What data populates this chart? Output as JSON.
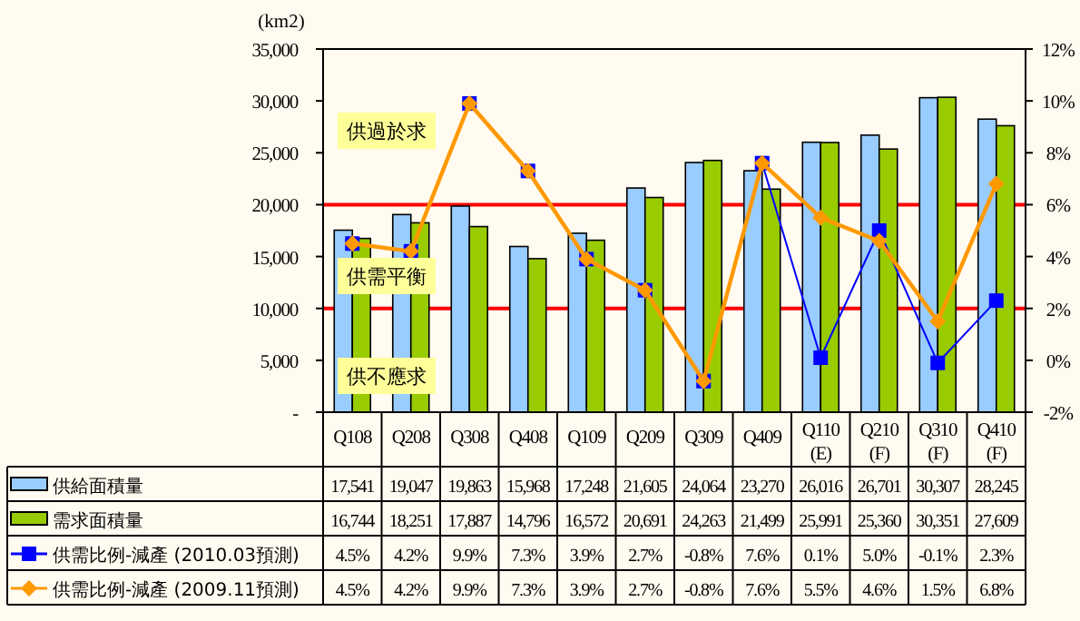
{
  "chart_data": {
    "type": "bar",
    "ylabel": "(km2)",
    "categories": [
      "Q108",
      "Q208",
      "Q308",
      "Q408",
      "Q109",
      "Q209",
      "Q309",
      "Q409",
      "Q110(E)",
      "Q210(F)",
      "Q310(F)",
      "Q410(F)"
    ],
    "series": [
      {
        "name": "供給面積量",
        "color": "#99ccff",
        "values": [
          17541,
          19047,
          19863,
          15968,
          17248,
          21605,
          24064,
          23270,
          26016,
          26701,
          30307,
          28245
        ],
        "value_labels": [
          "17,541",
          "19,047",
          "19,863",
          "15,968",
          "17,248",
          "21,605",
          "24,064",
          "23,270",
          "26,016",
          "26,701",
          "30,307",
          "28,245"
        ]
      },
      {
        "name": "需求面積量",
        "color": "#99cc00",
        "values": [
          16744,
          18251,
          17887,
          14796,
          16572,
          20691,
          24263,
          21499,
          25991,
          25360,
          30351,
          27609
        ],
        "value_labels": [
          "16,744",
          "18,251",
          "17,887",
          "14,796",
          "16,572",
          "20,691",
          "24,263",
          "21,499",
          "25,991",
          "25,360",
          "30,351",
          "27,609"
        ]
      },
      {
        "name": "供需比例-減產 (2010.03預測)",
        "type": "line",
        "axis": "y2",
        "color": "#0000ff",
        "marker": "square",
        "values": [
          4.5,
          4.2,
          9.9,
          7.3,
          3.9,
          2.7,
          -0.8,
          7.6,
          0.1,
          5.0,
          -0.1,
          2.3
        ],
        "value_labels": [
          "4.5%",
          "4.2%",
          "9.9%",
          "7.3%",
          "3.9%",
          "2.7%",
          "-0.8%",
          "7.6%",
          "0.1%",
          "5.0%",
          "-0.1%",
          "2.3%"
        ]
      },
      {
        "name": "供需比例-減產 (2009.11預測)",
        "type": "line",
        "axis": "y2",
        "color": "#ff9900",
        "marker": "diamond",
        "values": [
          4.5,
          4.2,
          9.9,
          7.3,
          3.9,
          2.7,
          -0.8,
          7.6,
          5.5,
          4.6,
          1.5,
          6.8
        ],
        "value_labels": [
          "4.5%",
          "4.2%",
          "9.9%",
          "7.3%",
          "3.9%",
          "2.7%",
          "-0.8%",
          "7.6%",
          "5.5%",
          "4.6%",
          "1.5%",
          "6.8%"
        ]
      }
    ],
    "ylim": [
      0,
      35000
    ],
    "yticks": [
      {
        "value": 0,
        "label": "-"
      },
      {
        "value": 5000,
        "label": "5,000"
      },
      {
        "value": 10000,
        "label": "10,000"
      },
      {
        "value": 15000,
        "label": "15,000"
      },
      {
        "value": 20000,
        "label": "20,000"
      },
      {
        "value": 25000,
        "label": "25,000"
      },
      {
        "value": 30000,
        "label": "30,000"
      },
      {
        "value": 35000,
        "label": "35,000"
      }
    ],
    "y2lim": [
      -2,
      12
    ],
    "y2ticks": [
      {
        "value": -2,
        "label": "-2%"
      },
      {
        "value": 0,
        "label": "0%"
      },
      {
        "value": 2,
        "label": "2%"
      },
      {
        "value": 4,
        "label": "4%"
      },
      {
        "value": 6,
        "label": "6%"
      },
      {
        "value": 8,
        "label": "8%"
      },
      {
        "value": 10,
        "label": "10%"
      },
      {
        "value": 12,
        "label": "12%"
      }
    ],
    "ref_lines": [
      {
        "axis": "y2",
        "value": 6,
        "color": "#ff0000"
      },
      {
        "axis": "y2",
        "value": 2,
        "color": "#ff0000"
      }
    ],
    "annotations": [
      "供過於求",
      "供需平衡",
      "供不應求"
    ],
    "legend": "bottom"
  }
}
